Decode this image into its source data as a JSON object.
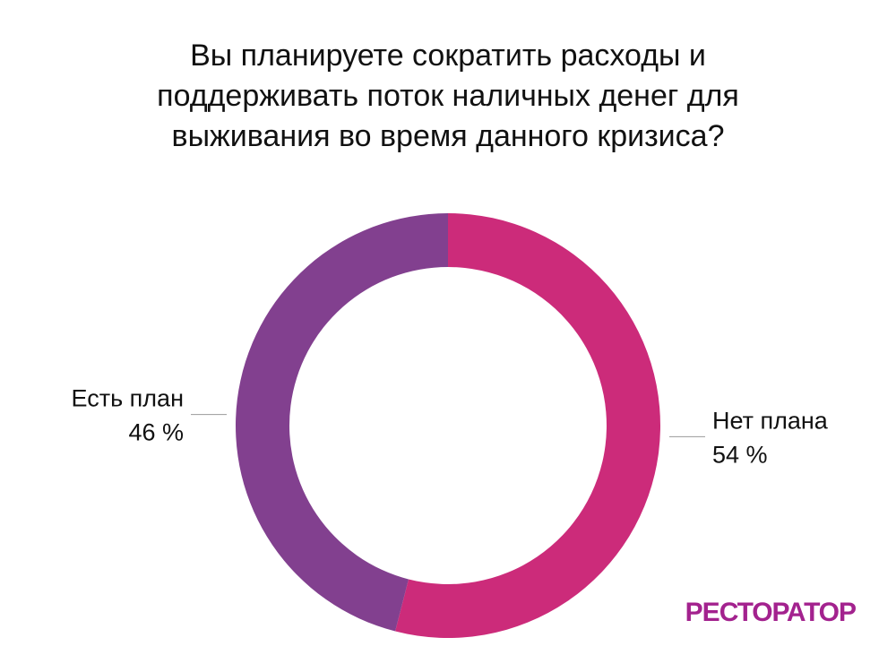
{
  "chart_data": {
    "type": "donut",
    "title": "Вы планируете сократить расходы и поддерживать поток наличных денег для выживания во время данного кризиса?",
    "categories": [
      "Нет плана",
      "Есть план"
    ],
    "values": [
      54,
      46
    ],
    "value_labels": [
      "54 %",
      "46 %"
    ],
    "colors": [
      "#cc2b7a",
      "#82408f"
    ],
    "logo": "РЕСТОРАТОР"
  }
}
